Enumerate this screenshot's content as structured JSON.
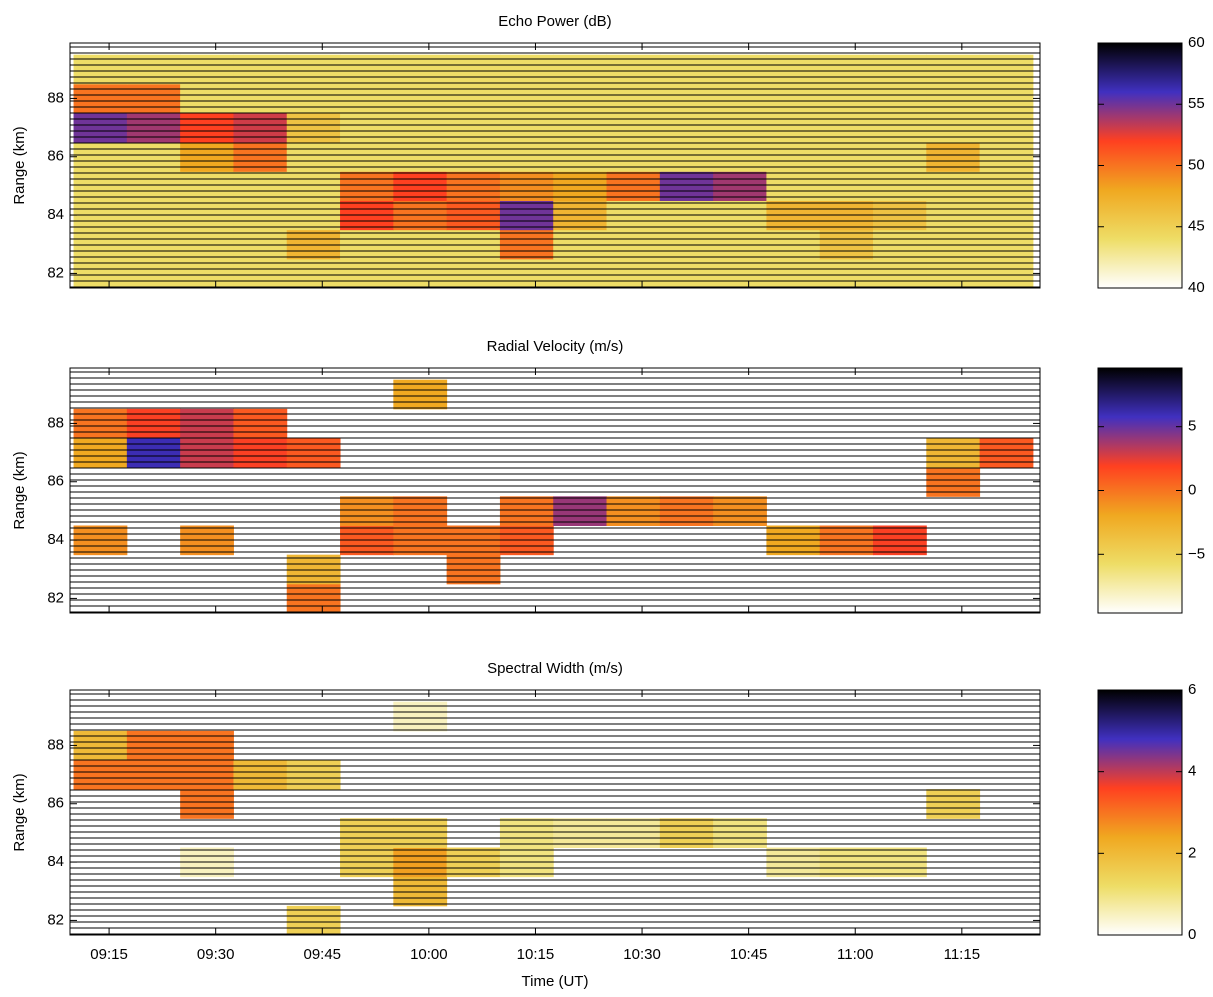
{
  "chart_data": [
    {
      "type": "heatmap",
      "title": "Echo Power (dB)",
      "y_label": "Range (km)",
      "xlim": [
        549.5,
        686
      ],
      "xticks": [
        555,
        570,
        585,
        600,
        615,
        630,
        645,
        660,
        675
      ],
      "ylim": [
        81.5,
        89.9
      ],
      "yticks": [
        82,
        84,
        86,
        88
      ],
      "x_edges": [
        550,
        557.5,
        565,
        572.5,
        580,
        587.5,
        595,
        602.5,
        610,
        617.5,
        625,
        632.5,
        640,
        647.5,
        655,
        662.5,
        670,
        677.5,
        685
      ],
      "y_edges": [
        81.5,
        82.5,
        83.5,
        84.5,
        85.5,
        86.5,
        87.5,
        88.5,
        89.5
      ],
      "values": [
        [
          44,
          44,
          44,
          44,
          44,
          44,
          44,
          44,
          44,
          44,
          44,
          44,
          44,
          44,
          44,
          44,
          44,
          44
        ],
        [
          44,
          44,
          44,
          44,
          47,
          44,
          44,
          44,
          50,
          44,
          44,
          44,
          44,
          44,
          46,
          44,
          44,
          44
        ],
        [
          44,
          44,
          44,
          44,
          44,
          52,
          50,
          51,
          55,
          47,
          44,
          44,
          44,
          47,
          47,
          46,
          44,
          44
        ],
        [
          44,
          44,
          44,
          44,
          44,
          50,
          52,
          50,
          49,
          48,
          50,
          55,
          54,
          44,
          44,
          44,
          44,
          44
        ],
        [
          44,
          44,
          48,
          50,
          44,
          44,
          44,
          44,
          44,
          44,
          44,
          44,
          44,
          44,
          44,
          44,
          47,
          44
        ],
        [
          55,
          54,
          52,
          53,
          46,
          44,
          44,
          44,
          44,
          44,
          44,
          44,
          44,
          44,
          44,
          44,
          44,
          44
        ],
        [
          50,
          50,
          44,
          44,
          44,
          44,
          44,
          44,
          44,
          44,
          44,
          44,
          44,
          44,
          44,
          44,
          44,
          44
        ],
        [
          44,
          44,
          44,
          44,
          44,
          44,
          44,
          44,
          44,
          44,
          44,
          44,
          44,
          44,
          44,
          44,
          44,
          44
        ]
      ],
      "clim": [
        40,
        60
      ],
      "cticks": [
        40,
        45,
        50,
        55,
        60
      ],
      "colormap": [
        "#ffffff",
        "#eedd66",
        "#f0a820",
        "#ff4020",
        "#4030c0",
        "#000000"
      ],
      "range_gates": true
    },
    {
      "type": "heatmap",
      "title": "Radial Velocity (m/s)",
      "y_label": "Range (km)",
      "xlim": [
        549.5,
        686
      ],
      "xticks": [
        555,
        570,
        585,
        600,
        615,
        630,
        645,
        660,
        675
      ],
      "ylim": [
        81.5,
        89.9
      ],
      "yticks": [
        82,
        84,
        86,
        88
      ],
      "x_edges": [
        550,
        557.5,
        565,
        572.5,
        580,
        587.5,
        595,
        602.5,
        610,
        617.5,
        625,
        632.5,
        640,
        647.5,
        655,
        662.5,
        670,
        677.5,
        685
      ],
      "y_edges": [
        81.5,
        82.5,
        83.5,
        84.5,
        85.5,
        86.5,
        87.5,
        88.5,
        89.5
      ],
      "values": [
        [
          null,
          null,
          null,
          null,
          0,
          null,
          null,
          null,
          null,
          null,
          null,
          null,
          null,
          null,
          null,
          null,
          null,
          null
        ],
        [
          null,
          null,
          null,
          null,
          -3,
          null,
          null,
          0,
          null,
          null,
          null,
          null,
          null,
          null,
          null,
          null,
          null,
          null
        ],
        [
          -1,
          null,
          -1,
          null,
          null,
          1,
          0,
          0,
          1,
          null,
          null,
          null,
          null,
          -2,
          0,
          2,
          null,
          null
        ],
        [
          null,
          null,
          null,
          null,
          null,
          -1,
          0,
          null,
          0,
          4,
          -1,
          0,
          -1,
          null,
          null,
          null,
          null,
          null
        ],
        [
          null,
          null,
          null,
          null,
          null,
          null,
          null,
          null,
          null,
          null,
          null,
          null,
          null,
          null,
          null,
          null,
          0,
          null
        ],
        [
          -2,
          6,
          3,
          2,
          1,
          null,
          null,
          null,
          null,
          null,
          null,
          null,
          null,
          null,
          null,
          null,
          -3,
          1
        ],
        [
          0,
          2,
          3,
          1,
          null,
          null,
          null,
          null,
          null,
          null,
          null,
          null,
          null,
          null,
          null,
          null,
          null,
          null
        ],
        [
          null,
          null,
          null,
          null,
          null,
          null,
          -2,
          null,
          null,
          null,
          null,
          null,
          null,
          null,
          null,
          null,
          null,
          null
        ]
      ],
      "clim": [
        -9.6,
        9.6
      ],
      "cticks": [
        {
          "value": -5,
          "label": "−5"
        },
        0,
        5
      ],
      "colormap": [
        "#ffffff",
        "#eedd66",
        "#f0a820",
        "#ff4020",
        "#4030c0",
        "#000000"
      ],
      "range_gates": true
    },
    {
      "type": "heatmap",
      "title": "Spectral Width (m/s)",
      "y_label": "Range (km)",
      "x_label": "Time (UT)",
      "xlim": [
        549.5,
        686
      ],
      "xticks": [
        {
          "value": 555,
          "label": "09:15"
        },
        {
          "value": 570,
          "label": "09:30"
        },
        {
          "value": 585,
          "label": "09:45"
        },
        {
          "value": 600,
          "label": "10:00"
        },
        {
          "value": 615,
          "label": "10:15"
        },
        {
          "value": 630,
          "label": "10:30"
        },
        {
          "value": 645,
          "label": "10:45"
        },
        {
          "value": 660,
          "label": "11:00"
        },
        {
          "value": 675,
          "label": "11:15"
        }
      ],
      "ylim": [
        81.5,
        89.9
      ],
      "yticks": [
        82,
        84,
        86,
        88
      ],
      "x_edges": [
        550,
        557.5,
        565,
        572.5,
        580,
        587.5,
        595,
        602.5,
        610,
        617.5,
        625,
        632.5,
        640,
        647.5,
        655,
        662.5,
        670,
        677.5,
        685
      ],
      "y_edges": [
        81.5,
        82.5,
        83.5,
        84.5,
        85.5,
        86.5,
        87.5,
        88.5,
        89.5
      ],
      "values": [
        [
          null,
          null,
          null,
          null,
          1.5,
          null,
          null,
          null,
          null,
          null,
          null,
          null,
          null,
          null,
          null,
          null,
          null,
          null
        ],
        [
          null,
          null,
          null,
          null,
          null,
          null,
          2,
          null,
          null,
          null,
          null,
          null,
          null,
          null,
          null,
          null,
          null,
          null
        ],
        [
          null,
          null,
          0.5,
          null,
          null,
          1.5,
          2.5,
          1.5,
          1,
          null,
          null,
          null,
          null,
          0.8,
          1,
          1,
          null,
          null
        ],
        [
          null,
          null,
          null,
          null,
          null,
          1.5,
          1.5,
          null,
          1,
          0.8,
          0.8,
          1.5,
          1,
          null,
          null,
          null,
          null,
          null
        ],
        [
          null,
          null,
          3,
          null,
          null,
          null,
          null,
          null,
          null,
          null,
          null,
          null,
          null,
          null,
          null,
          null,
          1.5,
          null
        ],
        [
          3,
          3,
          3,
          2,
          1.5,
          null,
          null,
          null,
          null,
          null,
          null,
          null,
          null,
          null,
          null,
          null,
          null,
          null
        ],
        [
          2,
          3,
          3,
          null,
          null,
          null,
          null,
          null,
          null,
          null,
          null,
          null,
          null,
          null,
          null,
          null,
          null,
          null
        ],
        [
          null,
          null,
          null,
          null,
          null,
          null,
          0.5,
          null,
          null,
          null,
          null,
          null,
          null,
          null,
          null,
          null,
          null,
          null
        ]
      ],
      "clim": [
        0,
        6
      ],
      "cticks": [
        0,
        2,
        4,
        6
      ],
      "colormap": [
        "#ffffff",
        "#eedd66",
        "#f0a820",
        "#ff4020",
        "#4030c0",
        "#000000"
      ],
      "range_gates": true
    }
  ]
}
